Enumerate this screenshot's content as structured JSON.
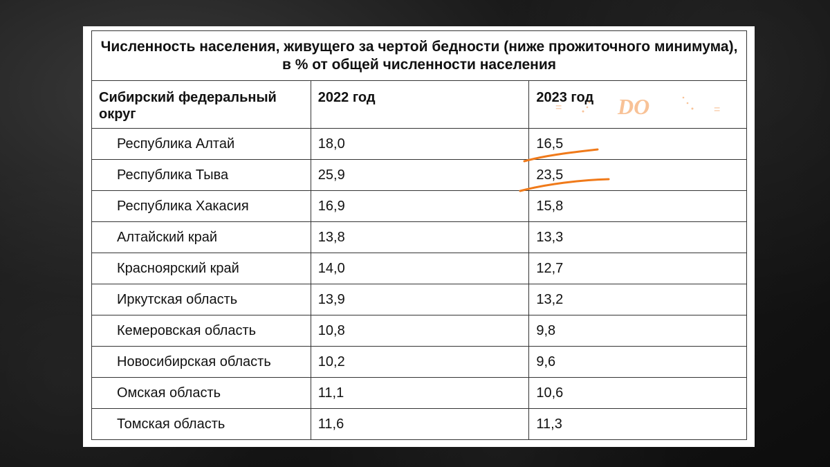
{
  "title": "Численность населения, живущего за чертой бедности (ниже прожиточного минимума), в % от общей численности населения",
  "columns": [
    "Сибирский федеральный округ",
    "2022 год",
    "2023 год"
  ],
  "watermark": "DO",
  "accent_color": "#f07a1a",
  "rows": [
    {
      "region": "Республика Алтай",
      "y2022": "18,0",
      "y2023": "16,5"
    },
    {
      "region": "Республика Тыва",
      "y2022": "25,9",
      "y2023": "23,5"
    },
    {
      "region": "Республика Хакасия",
      "y2022": "16,9",
      "y2023": "15,8"
    },
    {
      "region": "Алтайский край",
      "y2022": "13,8",
      "y2023": "13,3"
    },
    {
      "region": "Красноярский край",
      "y2022": "14,0",
      "y2023": "12,7"
    },
    {
      "region": "Иркутская область",
      "y2022": "13,9",
      "y2023": "13,2"
    },
    {
      "region": "Кемеровская область",
      "y2022": "10,8",
      "y2023": "9,8"
    },
    {
      "region": "Новосибирская область",
      "y2022": "10,2",
      "y2023": "9,6"
    },
    {
      "region": "Омская область",
      "y2022": "11,1",
      "y2023": "10,6"
    },
    {
      "region": "Томская область",
      "y2022": "11,6",
      "y2023": "11,3"
    }
  ]
}
